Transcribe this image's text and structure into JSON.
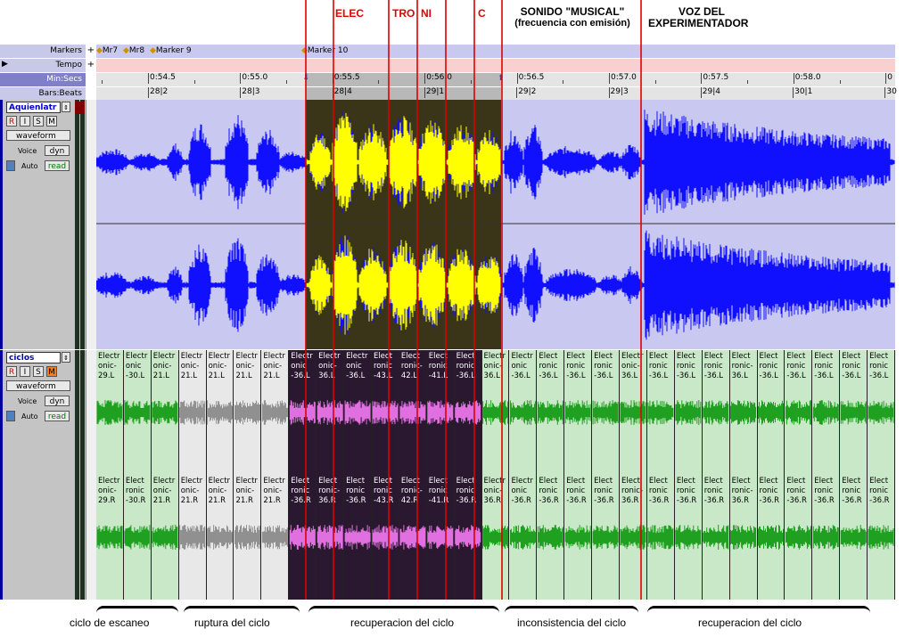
{
  "annotations": {
    "elec": "ELEC",
    "tro": "TRO",
    "ni": "NI",
    "c": "C",
    "sonido_line1": "SONIDO \"MUSICAL\"",
    "sonido_line2": "(frecuencia con emisión)",
    "voz_line1": "VOZ DEL",
    "voz_line2": "EXPERIMENTADOR"
  },
  "rulers": {
    "markers_label": "Markers",
    "tempo_label": "Tempo",
    "minsecs_label": "Min:Secs",
    "barsbeats_label": "Bars:Beats",
    "plus": "+",
    "markers": [
      {
        "label": "Mr7"
      },
      {
        "label": "Mr8"
      },
      {
        "label": "Marker 9"
      },
      {
        "label": "Marker 10"
      }
    ],
    "minsecs": [
      "0:54.5",
      "0:55.0",
      "0:55.5",
      "0:56.0",
      "0:56.5",
      "0:57.0",
      "0:57.5",
      "0:58.0",
      "0"
    ],
    "barsbeats": [
      "28|2",
      "28|3",
      "28|4",
      "29|1",
      "29|2",
      "29|3",
      "29|4",
      "30|1",
      "30"
    ]
  },
  "track1": {
    "name": "Aquienlatr",
    "r": "R",
    "i": "I",
    "s": "S",
    "m": "M",
    "view": "waveform",
    "voice_label": "Voice",
    "voice_value": "dyn",
    "auto_label": "Auto",
    "auto_value": "read"
  },
  "track2": {
    "name": "ciclos",
    "r": "R",
    "i": "I",
    "s": "S",
    "m": "M",
    "view": "waveform",
    "voice_label": "Voice",
    "voice_value": "dyn",
    "auto_label": "Auto",
    "auto_value": "read"
  },
  "clips_L": [
    "Electronic-29.L",
    "Electronic-30.L",
    "Electronic-21.L",
    "Electronic-21.L",
    "Electronic-21.L",
    "Electronic-21.L",
    "Electronic-21.L",
    "Electronic-36.L",
    "Electronic-36.L",
    "Electronic-36.L",
    "Electronic-43.L",
    "Electronic-42.L",
    "Electronic-41.L",
    "Electronic-36.L",
    "Electronic-36.L",
    "Electronic-36.L",
    "Electronic-36.L",
    "Electronic-36.L",
    "Electronic-36.L",
    "Electronic-36.L",
    "Electronic-36.L",
    "Electronic-36.L",
    "Electronic-36.L",
    "Electronic-36.L",
    "Electronic-36.L",
    "Electronic-36.L",
    "Electronic-36.L",
    "Electronic-36.L",
    "Electronic-36.L"
  ],
  "clips_R": [
    "Electronic-29.R",
    "Electronic-30.R",
    "Electronic-21.R",
    "Electronic-21.R",
    "Electronic-21.R",
    "Electronic-21.R",
    "Electronic-21.R",
    "Electronic-36.R",
    "Electronic-36.R",
    "Electronic-36.R",
    "Electronic-43.R",
    "Electronic-42.R",
    "Electronic-41.R",
    "Electronic-36.R",
    "Electronic-36.R",
    "Electronic-36.R",
    "Electronic-36.R",
    "Electronic-36.R",
    "Electronic-36.R",
    "Electronic-36.R",
    "Electronic-36.R",
    "Electronic-36.R",
    "Electronic-36.R",
    "Electronic-36.R",
    "Electronic-36.R",
    "Electronic-36.R",
    "Electronic-36.R",
    "Electronic-36.R",
    "Electronic-36.R"
  ],
  "clip_lines_L": [
    [
      "Electr",
      "onic-",
      "29.L"
    ],
    [
      "Electr",
      "onic",
      "-30.L"
    ],
    [
      "Electr",
      "onic-",
      "21.L"
    ],
    [
      "Electr",
      "onic-",
      "21.L"
    ],
    [
      "Electr",
      "onic-",
      "21.L"
    ],
    [
      "Electr",
      "onic-",
      "21.L"
    ],
    [
      "Electr",
      "onic-",
      "21.L"
    ],
    [
      "Electr",
      "onic",
      "-36.L"
    ],
    [
      "Electr",
      "onic-",
      "36.L"
    ],
    [
      "Electr",
      "onic",
      "-36.L"
    ],
    [
      "Elect",
      "ronic",
      "-43.L"
    ],
    [
      "Elect",
      "ronic-",
      "42.L"
    ],
    [
      "Elect",
      "ronic",
      "-41.L"
    ],
    [
      "Elect",
      "ronic",
      "-36.L"
    ],
    [
      "Electr",
      "onic-",
      "36.L"
    ],
    [
      "Electr",
      "onic",
      "-36.L"
    ],
    [
      "Elect",
      "ronic",
      "-36.L"
    ],
    [
      "Elect",
      "ronic",
      "-36.L"
    ],
    [
      "Elect",
      "ronic",
      "-36.L"
    ],
    [
      "Electr",
      "onic-",
      "36.L"
    ],
    [
      "Elect",
      "ronic",
      "-36.L"
    ],
    [
      "Elect",
      "ronic",
      "-36.L"
    ],
    [
      "Elect",
      "ronic",
      "-36.L"
    ],
    [
      "Elect",
      "ronic-",
      "36.L"
    ],
    [
      "Elect",
      "ronic",
      "-36.L"
    ],
    [
      "Elect",
      "ronic",
      "-36.L"
    ],
    [
      "Elect",
      "ronic",
      "-36.L"
    ],
    [
      "Elect",
      "ronic",
      "-36.L"
    ],
    [
      "Elect",
      "ronic",
      "-36.L"
    ]
  ],
  "clip_lines_R": [
    [
      "Electr",
      "onic-",
      "29.R"
    ],
    [
      "Elect",
      "ronic",
      "-30.R"
    ],
    [
      "Electr",
      "onic-",
      "21.R"
    ],
    [
      "Electr",
      "onic-",
      "21.R"
    ],
    [
      "Electr",
      "onic-",
      "21.R"
    ],
    [
      "Electr",
      "onic-",
      "21.R"
    ],
    [
      "Electr",
      "onic-",
      "21.R"
    ],
    [
      "Elect",
      "ronic",
      "-36.R"
    ],
    [
      "Elect",
      "ronic-",
      "36.R"
    ],
    [
      "Elect",
      "ronic",
      "-36.R"
    ],
    [
      "Elect",
      "ronic",
      "-43.R"
    ],
    [
      "Elect",
      "ronic-",
      "42.R"
    ],
    [
      "Elect",
      "ronic",
      "-41.R"
    ],
    [
      "Elect",
      "ronic",
      "-36.R"
    ],
    [
      "Electr",
      "onic-",
      "36.R"
    ],
    [
      "Electr",
      "onic",
      "-36.R"
    ],
    [
      "Elect",
      "ronic",
      "-36.R"
    ],
    [
      "Elect",
      "ronic",
      "-36.R"
    ],
    [
      "Elect",
      "ronic",
      "-36.R"
    ],
    [
      "Elect",
      "ronic-",
      "36.R"
    ],
    [
      "Elect",
      "ronic",
      "-36.R"
    ],
    [
      "Elect",
      "ronic",
      "-36.R"
    ],
    [
      "Elect",
      "ronic",
      "-36.R"
    ],
    [
      "Elect",
      "ronic-",
      "36.R"
    ],
    [
      "Elect",
      "ronic",
      "-36.R"
    ],
    [
      "Elect",
      "ronic",
      "-36.R"
    ],
    [
      "Elect",
      "ronic",
      "-36.R"
    ],
    [
      "Elect",
      "ronic",
      "-36.R"
    ],
    [
      "Elect",
      "ronic",
      "-36.R"
    ]
  ],
  "bottom_labels": {
    "scan": "ciclo de escaneo",
    "ruptura": "ruptura del ciclo",
    "recup1": "recuperacion del ciclo",
    "incons": "inconsistencia del ciclo",
    "recup2": "recuperacion del ciclo"
  },
  "colors": {
    "waveform_bg": "#c8c8f0",
    "waveform": "#1010ff",
    "selected_bg": "#3a3418",
    "selected_wave": "#ffff00",
    "clip_green": "#c8e8c8",
    "clip_gray": "#e8e8e8",
    "clip_dark": "#2a1830",
    "wave_green": "#20a020",
    "wave_gray": "#909090",
    "wave_pink": "#e070e0",
    "red_line": "#e00000"
  }
}
